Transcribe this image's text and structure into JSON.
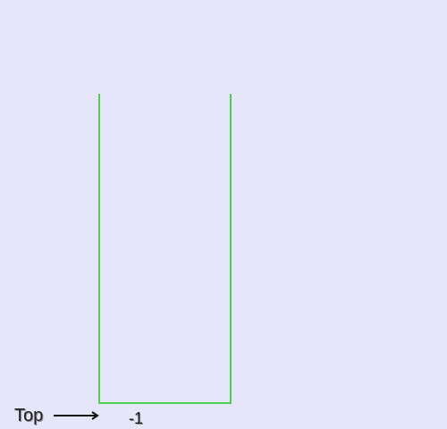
{
  "stack": {
    "top_label": "Top",
    "top_value": "-1",
    "items": []
  },
  "colors": {
    "background": "#e6e6fa",
    "container_border": "#4fcf4f",
    "text": "#222222"
  },
  "icons": {
    "pointer": "arrow-right-icon"
  }
}
